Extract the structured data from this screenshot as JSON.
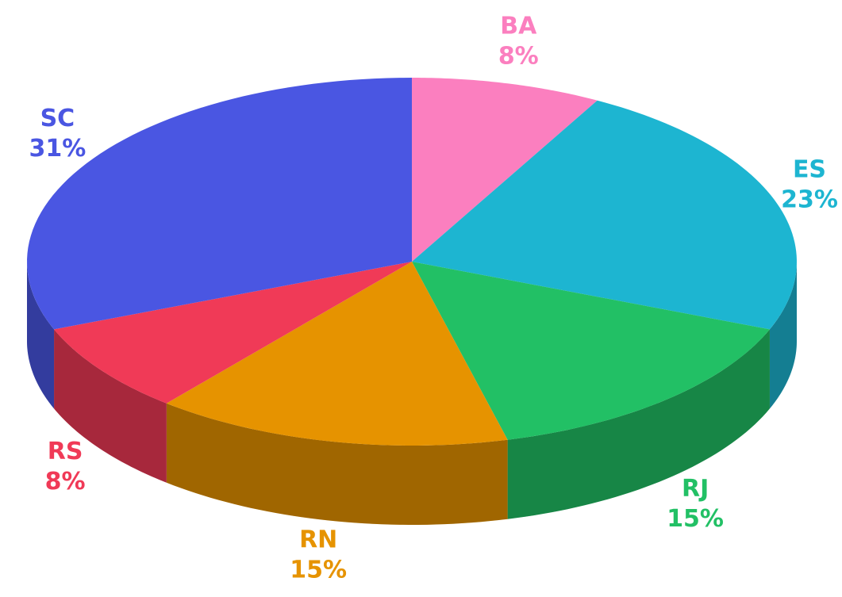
{
  "chart_data": {
    "type": "pie3d",
    "categories": [
      "BA",
      "ES",
      "RJ",
      "RN",
      "RS",
      "SC"
    ],
    "values": [
      8,
      23,
      15,
      15,
      8,
      31
    ],
    "value_labels": [
      "8%",
      "23%",
      "15%",
      "15%",
      "8%",
      "31%"
    ],
    "colors": [
      "#fb7fbf",
      "#1db5d1",
      "#22c065",
      "#e69300",
      "#f03a57",
      "#4a56e2"
    ]
  }
}
